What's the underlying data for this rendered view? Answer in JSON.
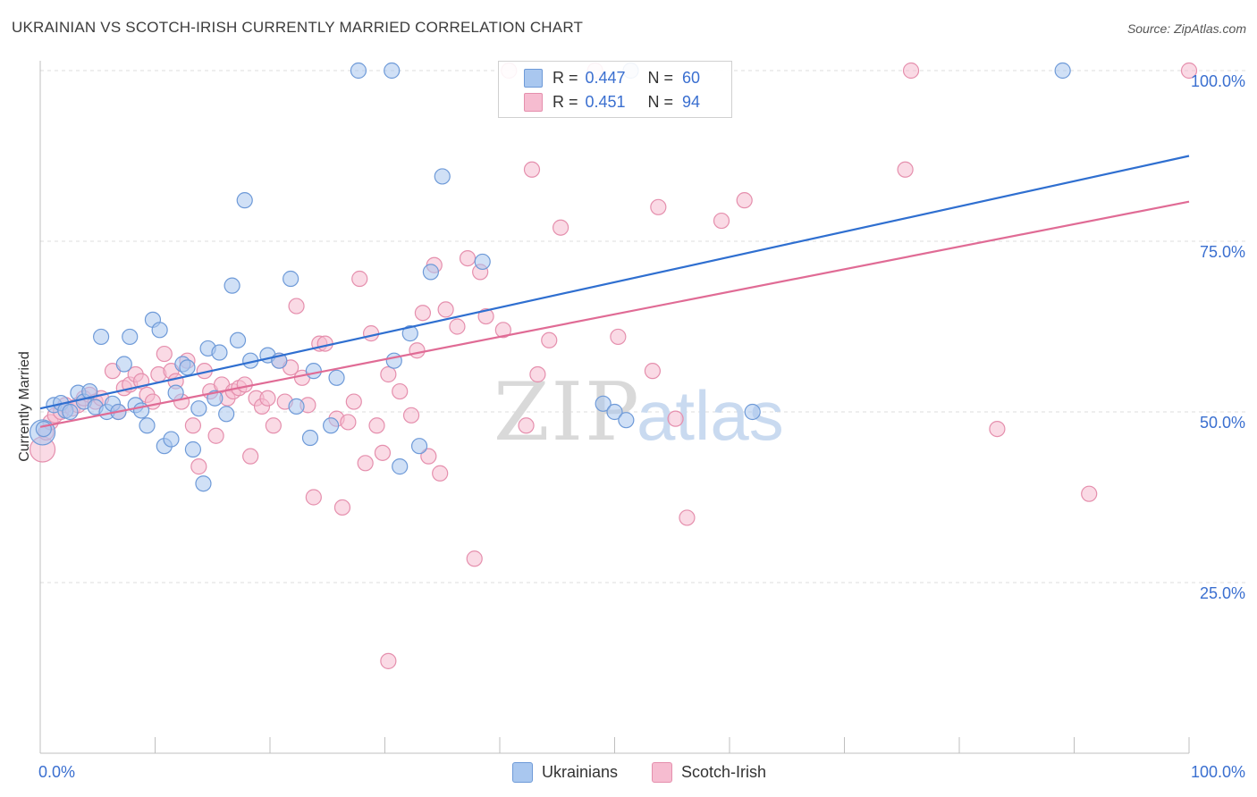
{
  "header": {
    "title": "UKRAINIAN VS SCOTCH-IRISH CURRENTLY MARRIED CORRELATION CHART",
    "source": "Source: ZipAtlas.com"
  },
  "legend": {
    "ukr_r_label": "R =",
    "ukr_r_value": "0.447",
    "ukr_n_label": "N =",
    "ukr_n_value": "60",
    "sco_r_label": "R =",
    "sco_r_value": "0.451",
    "sco_n_label": "N =",
    "sco_n_value": "94"
  },
  "bottom_legend": {
    "ukr_label": "Ukrainians",
    "sco_label": "Scotch-Irish"
  },
  "watermark": {
    "zip": "ZIP",
    "atlas": "atlas"
  },
  "colors": {
    "ukr_fill": "#a9c7ef",
    "ukr_stroke": "#6e9ad8",
    "ukr_line": "#2f6fd0",
    "sco_fill": "#f6bcd0",
    "sco_stroke": "#e58fad",
    "sco_line": "#e06b95",
    "axis_text": "#3a6fd0"
  },
  "chart_data": {
    "type": "scatter",
    "title": "UKRAINIAN VS SCOTCH-IRISH CURRENTLY MARRIED CORRELATION CHART",
    "xlabel": "",
    "ylabel": "Currently Married",
    "xlim": [
      0,
      100
    ],
    "ylim": [
      0,
      100
    ],
    "x_tick_labels": [
      "0.0%",
      "100.0%"
    ],
    "y_tick_labels": [
      "25.0%",
      "50.0%",
      "75.0%",
      "100.0%"
    ],
    "y_ticks": [
      25,
      50,
      75,
      100
    ],
    "grid": true,
    "legend_position": "top-center",
    "series": [
      {
        "name": "Ukrainians",
        "r": 0.447,
        "n": 60,
        "trend": {
          "x": [
            0,
            100
          ],
          "y": [
            50.5,
            87.5
          ]
        },
        "points": [
          [
            0.2,
            47.0
          ],
          [
            0.3,
            47.5
          ],
          [
            1.2,
            51.0
          ],
          [
            1.8,
            51.3
          ],
          [
            2.2,
            50.2
          ],
          [
            2.6,
            50.0
          ],
          [
            3.3,
            52.8
          ],
          [
            3.8,
            51.5
          ],
          [
            4.3,
            53.0
          ],
          [
            4.8,
            50.7
          ],
          [
            5.3,
            61.0
          ],
          [
            5.8,
            50.0
          ],
          [
            6.3,
            51.2
          ],
          [
            6.8,
            50.0
          ],
          [
            7.3,
            57.0
          ],
          [
            7.8,
            61.0
          ],
          [
            8.3,
            51.0
          ],
          [
            8.8,
            50.2
          ],
          [
            9.3,
            48.0
          ],
          [
            9.8,
            63.5
          ],
          [
            10.4,
            62.0
          ],
          [
            10.8,
            45.0
          ],
          [
            11.4,
            46.0
          ],
          [
            11.8,
            52.8
          ],
          [
            12.4,
            57.0
          ],
          [
            12.8,
            56.5
          ],
          [
            13.3,
            44.5
          ],
          [
            13.8,
            50.5
          ],
          [
            14.2,
            39.5
          ],
          [
            14.6,
            59.3
          ],
          [
            15.2,
            52.0
          ],
          [
            15.6,
            58.7
          ],
          [
            16.2,
            49.7
          ],
          [
            16.7,
            68.5
          ],
          [
            17.2,
            60.5
          ],
          [
            17.8,
            81.0
          ],
          [
            18.3,
            57.5
          ],
          [
            19.8,
            58.3
          ],
          [
            20.8,
            57.5
          ],
          [
            21.8,
            69.5
          ],
          [
            22.3,
            50.8
          ],
          [
            23.5,
            46.2
          ],
          [
            23.8,
            56.0
          ],
          [
            25.3,
            48.0
          ],
          [
            25.8,
            55.0
          ],
          [
            27.7,
            100.0
          ],
          [
            30.6,
            100.0
          ],
          [
            30.8,
            57.5
          ],
          [
            31.3,
            42.0
          ],
          [
            32.2,
            61.5
          ],
          [
            33.0,
            45.0
          ],
          [
            34.0,
            70.5
          ],
          [
            35.0,
            84.5
          ],
          [
            38.5,
            72.0
          ],
          [
            49.0,
            51.2
          ],
          [
            50.0,
            50.0
          ],
          [
            51.0,
            48.8
          ],
          [
            62.0,
            50.0
          ],
          [
            89.0,
            100.0
          ],
          [
            51.4,
            100.0
          ]
        ]
      },
      {
        "name": "Scotch-Irish",
        "r": 0.451,
        "n": 94,
        "trend": {
          "x": [
            0,
            100
          ],
          "y": [
            47.8,
            80.8
          ]
        },
        "points": [
          [
            0.2,
            44.5
          ],
          [
            0.5,
            47.0
          ],
          [
            0.9,
            48.5
          ],
          [
            1.3,
            49.5
          ],
          [
            1.8,
            50.0
          ],
          [
            2.2,
            51.0
          ],
          [
            2.8,
            50.5
          ],
          [
            3.3,
            51.0
          ],
          [
            3.8,
            52.0
          ],
          [
            4.3,
            52.5
          ],
          [
            4.8,
            51.5
          ],
          [
            5.3,
            52.0
          ],
          [
            6.3,
            56.0
          ],
          [
            6.8,
            50.0
          ],
          [
            7.3,
            53.5
          ],
          [
            7.8,
            54.0
          ],
          [
            8.3,
            55.5
          ],
          [
            8.8,
            54.5
          ],
          [
            9.3,
            52.5
          ],
          [
            9.8,
            51.5
          ],
          [
            10.3,
            55.5
          ],
          [
            10.8,
            58.5
          ],
          [
            11.4,
            56.0
          ],
          [
            11.8,
            54.5
          ],
          [
            12.3,
            51.5
          ],
          [
            12.8,
            57.5
          ],
          [
            13.3,
            48.0
          ],
          [
            13.8,
            42.0
          ],
          [
            14.3,
            56.0
          ],
          [
            14.8,
            53.0
          ],
          [
            15.3,
            46.5
          ],
          [
            15.8,
            54.0
          ],
          [
            16.3,
            52.0
          ],
          [
            16.8,
            53.0
          ],
          [
            17.3,
            53.5
          ],
          [
            17.8,
            54.0
          ],
          [
            18.3,
            43.5
          ],
          [
            18.8,
            52.0
          ],
          [
            19.3,
            50.8
          ],
          [
            19.8,
            52.0
          ],
          [
            20.3,
            48.0
          ],
          [
            20.8,
            57.5
          ],
          [
            21.3,
            51.5
          ],
          [
            21.8,
            56.5
          ],
          [
            22.3,
            65.5
          ],
          [
            22.8,
            55.0
          ],
          [
            23.3,
            51.0
          ],
          [
            23.8,
            37.5
          ],
          [
            24.3,
            60.0
          ],
          [
            24.8,
            60.0
          ],
          [
            25.8,
            49.0
          ],
          [
            26.3,
            36.0
          ],
          [
            26.8,
            48.5
          ],
          [
            27.3,
            51.5
          ],
          [
            27.8,
            69.5
          ],
          [
            28.3,
            42.5
          ],
          [
            28.8,
            61.5
          ],
          [
            29.3,
            48.0
          ],
          [
            29.8,
            44.0
          ],
          [
            30.3,
            55.5
          ],
          [
            31.3,
            53.0
          ],
          [
            32.3,
            49.5
          ],
          [
            32.8,
            59.0
          ],
          [
            33.3,
            64.5
          ],
          [
            33.8,
            43.5
          ],
          [
            34.3,
            71.5
          ],
          [
            34.8,
            41.0
          ],
          [
            35.3,
            65.0
          ],
          [
            36.3,
            62.5
          ],
          [
            37.2,
            72.5
          ],
          [
            37.8,
            28.5
          ],
          [
            38.3,
            70.5
          ],
          [
            38.8,
            64.0
          ],
          [
            40.3,
            62.0
          ],
          [
            40.8,
            100.0
          ],
          [
            42.3,
            48.0
          ],
          [
            42.8,
            85.5
          ],
          [
            43.3,
            55.5
          ],
          [
            44.3,
            60.5
          ],
          [
            45.3,
            77.0
          ],
          [
            48.3,
            100.0
          ],
          [
            50.3,
            61.0
          ],
          [
            53.3,
            56.0
          ],
          [
            53.8,
            80.0
          ],
          [
            55.3,
            49.0
          ],
          [
            56.3,
            34.5
          ],
          [
            59.3,
            78.0
          ],
          [
            61.3,
            81.0
          ],
          [
            75.3,
            85.5
          ],
          [
            75.8,
            100.0
          ],
          [
            83.3,
            47.5
          ],
          [
            91.3,
            38.0
          ],
          [
            100.0,
            100.0
          ],
          [
            30.3,
            13.5
          ]
        ]
      }
    ]
  }
}
